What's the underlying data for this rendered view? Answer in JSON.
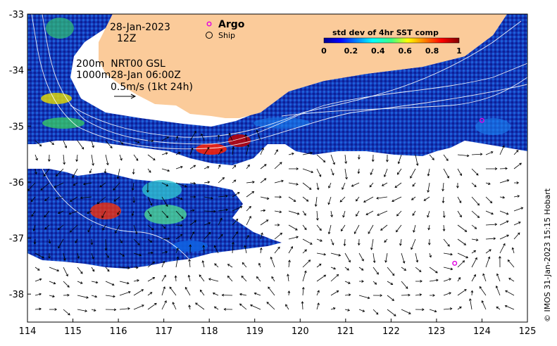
{
  "map": {
    "date_line1": "28-Jan-2023",
    "date_line2": "12Z",
    "depth_line1": "200m  NRT00 GSL",
    "depth_line2": "1000m28-Jan 06:00Z",
    "scale_label": "0.5m/s (1kt 24h)",
    "credit": "© IMOS 31-Jan-2023 15:15 Hobart"
  },
  "legend": {
    "argo_label": "Argo",
    "ship_label": "Ship",
    "colorbar_title": "std dev of 4hr SST comp",
    "colorbar_ticks": [
      "0",
      "0.2",
      "0.4",
      "0.6",
      "0.8",
      "1"
    ]
  },
  "axes": {
    "x_ticks": [
      "114",
      "115",
      "116",
      "117",
      "118",
      "119",
      "120",
      "121",
      "122",
      "123",
      "124",
      "125"
    ],
    "y_ticks": [
      "-33",
      "-34",
      "-35",
      "-36",
      "-37",
      "-38"
    ]
  },
  "argo_floats": [
    {
      "lon": 124.0,
      "lat": -34.9
    },
    {
      "lon": 123.4,
      "lat": -37.45
    }
  ],
  "colors": {
    "land": "#fbcb9a",
    "ocean_low": "#0a1e8c",
    "argo": "#e000e0"
  }
}
